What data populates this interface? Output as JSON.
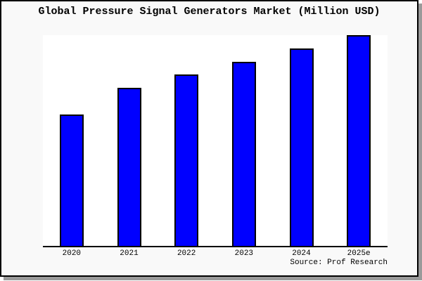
{
  "chart": {
    "source": "Source: Prof Research",
    "colors": {
      "bar_fill": "#0000ff",
      "bar_border": "#000000",
      "figure_background": "#f9f9f9",
      "plot_background": "#ffffff",
      "frame_border": "#000000",
      "shadow": "#9a9a9a"
    }
  },
  "chart_data": {
    "type": "bar",
    "title": "Global Pressure Signal Generators Market (Million USD)",
    "categories": [
      "2020",
      "2021",
      "2022",
      "2023",
      "2024",
      "2025e"
    ],
    "values": [
      100,
      120,
      130,
      140,
      150,
      160
    ],
    "xlabel": "",
    "ylabel": "",
    "ylim": [
      0,
      160
    ],
    "grid": false,
    "legend": false,
    "y_axis_visible": false,
    "annotation": "Source: Prof Research"
  }
}
